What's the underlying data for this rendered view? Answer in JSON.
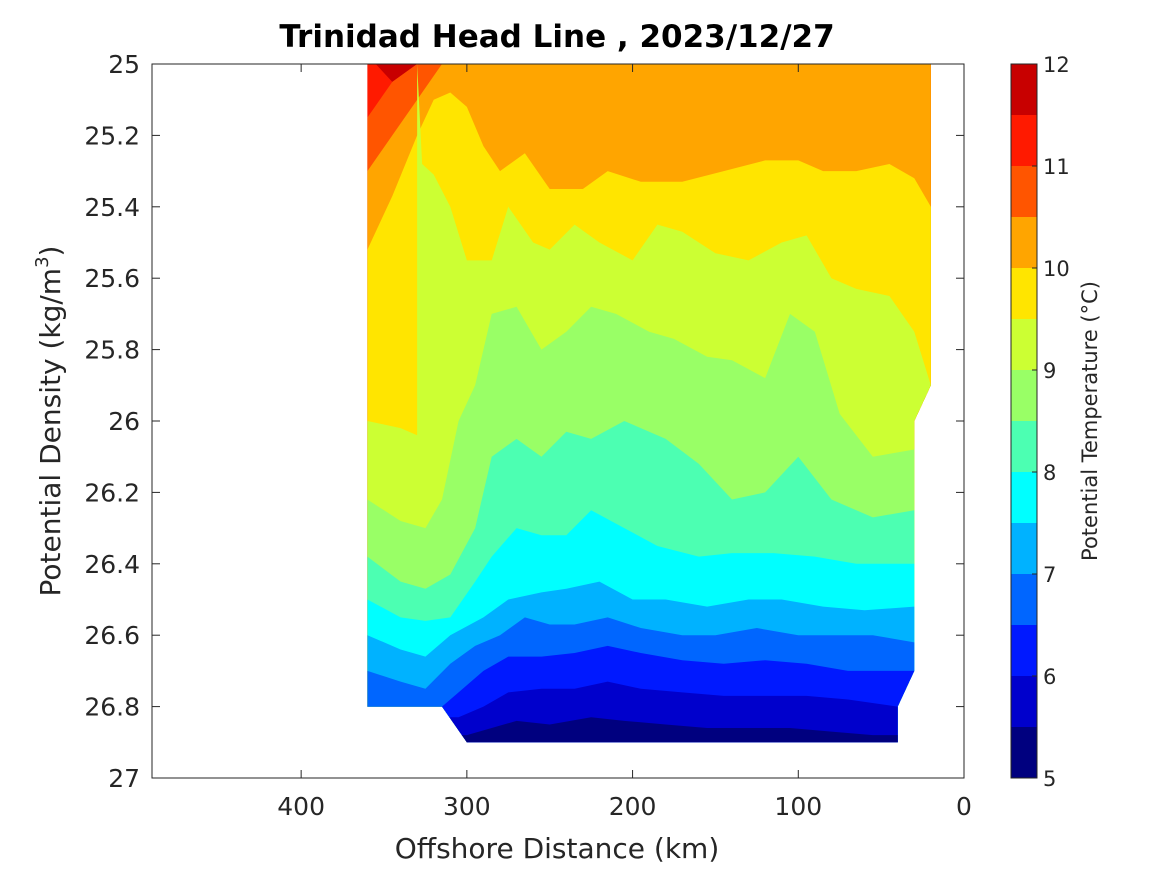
{
  "chart_data": {
    "type": "contour",
    "title": "Trinidad Head Line , 2023/12/27",
    "xlabel": "Offshore Distance (km)",
    "ylabel": "Potential Density (kg/m³)",
    "ylabel_base": "Potential Density (kg/m",
    "ylabel_sup": "3",
    "ylabel_end": ")",
    "colorbar_label": "Potential Temperature (°C)",
    "xlim": [
      490,
      0
    ],
    "xaxis_reversed": true,
    "ylim": [
      25,
      27
    ],
    "yaxis_reversed": true,
    "xticks": [
      400,
      300,
      200,
      100,
      0
    ],
    "xtick_labels": [
      "400",
      "300",
      "200",
      "100",
      "0"
    ],
    "yticks": [
      25,
      25.2,
      25.4,
      25.6,
      25.8,
      26,
      26.2,
      26.4,
      26.6,
      26.8,
      27
    ],
    "ytick_labels": [
      "25",
      "25.2",
      "25.4",
      "25.6",
      "25.8",
      "26",
      "26.2",
      "26.4",
      "26.6",
      "26.8",
      "27"
    ],
    "colorbar_range": [
      5,
      12
    ],
    "colorbar_ticks": [
      5,
      6,
      7,
      8,
      9,
      10,
      11,
      12
    ],
    "colorbar_tick_labels": [
      "5",
      "6",
      "7",
      "8",
      "9",
      "10",
      "11",
      "12"
    ],
    "contour_levels": [
      5,
      5.5,
      6,
      6.5,
      7,
      7.5,
      8,
      8.5,
      9,
      9.5,
      10,
      10.5,
      11,
      11.5,
      12
    ],
    "level_colors": [
      "#00007f",
      "#0000cc",
      "#0019ff",
      "#0066ff",
      "#00b2ff",
      "#00ffff",
      "#4cffb2",
      "#99ff66",
      "#ccff33",
      "#ffe500",
      "#ffa500",
      "#ff5500",
      "#ff1a00",
      "#c80000"
    ],
    "data_extent": {
      "x_range_km": [
        360,
        20
      ],
      "density_range": [
        25,
        26.9
      ],
      "bottom_edge": [
        {
          "x": 360,
          "d": 26.8
        },
        {
          "x": 315,
          "d": 26.8
        },
        {
          "x": 300,
          "d": 26.9
        },
        {
          "x": 40,
          "d": 26.9
        },
        {
          "x": 40,
          "d": 26.8
        },
        {
          "x": 30,
          "d": 26.7
        },
        {
          "x": 30,
          "d": 26.0
        },
        {
          "x": 20,
          "d": 25.9
        }
      ]
    },
    "isotherm_boundaries": [
      {
        "lower": 11.5,
        "points": [
          [
            355,
            25
          ],
          [
            345,
            25.05
          ],
          [
            330,
            25.0
          ]
        ]
      },
      {
        "lower": 11.0,
        "points": [
          [
            360,
            25.15
          ],
          [
            345,
            25.05
          ],
          [
            330,
            25.0
          ]
        ]
      },
      {
        "lower": 10.5,
        "points": [
          [
            360,
            25.3
          ],
          [
            345,
            25.2
          ],
          [
            330,
            25.1
          ],
          [
            315,
            25.0
          ]
        ]
      },
      {
        "lower": 10.0,
        "points": [
          [
            360,
            25.52
          ],
          [
            345,
            25.37
          ],
          [
            330,
            25.2
          ],
          [
            320,
            25.1
          ],
          [
            310,
            25.08
          ],
          [
            300,
            25.12
          ],
          [
            290,
            25.23
          ],
          [
            280,
            25.3
          ],
          [
            265,
            25.25
          ],
          [
            250,
            25.35
          ],
          [
            230,
            25.35
          ],
          [
            215,
            25.3
          ],
          [
            195,
            25.33
          ],
          [
            170,
            25.33
          ],
          [
            145,
            25.3
          ],
          [
            120,
            25.27
          ],
          [
            100,
            25.27
          ],
          [
            85,
            25.3
          ],
          [
            65,
            25.3
          ],
          [
            45,
            25.28
          ],
          [
            30,
            25.32
          ],
          [
            20,
            25.4
          ]
        ]
      },
      {
        "lower": 9.5,
        "points": [
          [
            360,
            26.0
          ],
          [
            340,
            26.02
          ],
          [
            330,
            26.04
          ],
          [
            330,
            25.0
          ],
          [
            327,
            25.28
          ],
          [
            320,
            25.31
          ],
          [
            310,
            25.4
          ],
          [
            300,
            25.55
          ],
          [
            285,
            25.55
          ],
          [
            275,
            25.4
          ],
          [
            260,
            25.5
          ],
          [
            250,
            25.52
          ],
          [
            235,
            25.45
          ],
          [
            220,
            25.5
          ],
          [
            200,
            25.55
          ],
          [
            185,
            25.45
          ],
          [
            170,
            25.47
          ],
          [
            150,
            25.53
          ],
          [
            130,
            25.55
          ],
          [
            110,
            25.5
          ],
          [
            95,
            25.48
          ],
          [
            80,
            25.6
          ],
          [
            65,
            25.63
          ],
          [
            45,
            25.65
          ],
          [
            30,
            25.75
          ],
          [
            20,
            25.9
          ]
        ]
      },
      {
        "lower": 9.0,
        "points": [
          [
            360,
            26.22
          ],
          [
            340,
            26.28
          ],
          [
            325,
            26.3
          ],
          [
            315,
            26.22
          ],
          [
            305,
            26.0
          ],
          [
            295,
            25.9
          ],
          [
            285,
            25.7
          ],
          [
            270,
            25.68
          ],
          [
            255,
            25.8
          ],
          [
            240,
            25.75
          ],
          [
            225,
            25.68
          ],
          [
            210,
            25.7
          ],
          [
            190,
            25.75
          ],
          [
            175,
            25.77
          ],
          [
            155,
            25.82
          ],
          [
            140,
            25.83
          ],
          [
            120,
            25.88
          ],
          [
            105,
            25.7
          ],
          [
            90,
            25.75
          ],
          [
            75,
            25.98
          ],
          [
            55,
            26.1
          ],
          [
            30,
            26.08
          ]
        ]
      },
      {
        "lower": 8.5,
        "points": [
          [
            360,
            26.38
          ],
          [
            340,
            26.45
          ],
          [
            325,
            26.47
          ],
          [
            310,
            26.43
          ],
          [
            295,
            26.3
          ],
          [
            285,
            26.1
          ],
          [
            270,
            26.05
          ],
          [
            255,
            26.1
          ],
          [
            240,
            26.03
          ],
          [
            225,
            26.05
          ],
          [
            205,
            26.0
          ],
          [
            180,
            26.05
          ],
          [
            160,
            26.12
          ],
          [
            140,
            26.22
          ],
          [
            120,
            26.2
          ],
          [
            100,
            26.1
          ],
          [
            80,
            26.22
          ],
          [
            55,
            26.27
          ],
          [
            30,
            26.25
          ]
        ]
      },
      {
        "lower": 8.0,
        "points": [
          [
            360,
            26.5
          ],
          [
            340,
            26.55
          ],
          [
            325,
            26.56
          ],
          [
            310,
            26.55
          ],
          [
            295,
            26.45
          ],
          [
            285,
            26.38
          ],
          [
            270,
            26.3
          ],
          [
            255,
            26.32
          ],
          [
            240,
            26.32
          ],
          [
            225,
            26.25
          ],
          [
            205,
            26.3
          ],
          [
            185,
            26.35
          ],
          [
            160,
            26.38
          ],
          [
            140,
            26.37
          ],
          [
            115,
            26.37
          ],
          [
            90,
            26.38
          ],
          [
            65,
            26.4
          ],
          [
            30,
            26.4
          ]
        ]
      },
      {
        "lower": 7.5,
        "points": [
          [
            360,
            26.6
          ],
          [
            340,
            26.64
          ],
          [
            325,
            26.66
          ],
          [
            310,
            26.6
          ],
          [
            290,
            26.55
          ],
          [
            275,
            26.5
          ],
          [
            255,
            26.48
          ],
          [
            240,
            26.47
          ],
          [
            220,
            26.45
          ],
          [
            200,
            26.5
          ],
          [
            180,
            26.5
          ],
          [
            155,
            26.52
          ],
          [
            130,
            26.5
          ],
          [
            110,
            26.5
          ],
          [
            85,
            26.52
          ],
          [
            60,
            26.53
          ],
          [
            30,
            26.52
          ]
        ]
      },
      {
        "lower": 7.0,
        "points": [
          [
            360,
            26.7
          ],
          [
            340,
            26.73
          ],
          [
            325,
            26.75
          ],
          [
            310,
            26.68
          ],
          [
            295,
            26.63
          ],
          [
            280,
            26.6
          ],
          [
            265,
            26.55
          ],
          [
            250,
            26.57
          ],
          [
            235,
            26.57
          ],
          [
            215,
            26.55
          ],
          [
            195,
            26.58
          ],
          [
            170,
            26.6
          ],
          [
            150,
            26.6
          ],
          [
            125,
            26.58
          ],
          [
            100,
            26.6
          ],
          [
            80,
            26.6
          ],
          [
            55,
            26.6
          ],
          [
            30,
            26.62
          ]
        ]
      },
      {
        "lower": 6.5,
        "points": [
          [
            360,
            26.8
          ],
          [
            315,
            26.8
          ],
          [
            305,
            26.76
          ],
          [
            290,
            26.7
          ],
          [
            275,
            26.66
          ],
          [
            255,
            26.66
          ],
          [
            235,
            26.65
          ],
          [
            215,
            26.63
          ],
          [
            195,
            26.65
          ],
          [
            170,
            26.67
          ],
          [
            145,
            26.68
          ],
          [
            120,
            26.67
          ],
          [
            95,
            26.68
          ],
          [
            70,
            26.7
          ],
          [
            50,
            26.7
          ],
          [
            30,
            26.7
          ]
        ]
      },
      {
        "lower": 6.0,
        "points": [
          [
            305,
            26.83
          ],
          [
            290,
            26.8
          ],
          [
            275,
            26.76
          ],
          [
            255,
            26.75
          ],
          [
            235,
            26.75
          ],
          [
            215,
            26.73
          ],
          [
            195,
            26.75
          ],
          [
            170,
            26.76
          ],
          [
            145,
            26.77
          ],
          [
            120,
            26.77
          ],
          [
            95,
            26.77
          ],
          [
            70,
            26.78
          ],
          [
            40,
            26.8
          ]
        ]
      },
      {
        "lower": 5.5,
        "points": [
          [
            300,
            26.88
          ],
          [
            285,
            26.86
          ],
          [
            270,
            26.84
          ],
          [
            250,
            26.85
          ],
          [
            225,
            26.83
          ],
          [
            205,
            26.84
          ],
          [
            180,
            26.85
          ],
          [
            155,
            26.86
          ],
          [
            130,
            26.86
          ],
          [
            105,
            26.86
          ],
          [
            80,
            26.87
          ],
          [
            55,
            26.88
          ],
          [
            40,
            26.88
          ]
        ]
      }
    ]
  }
}
